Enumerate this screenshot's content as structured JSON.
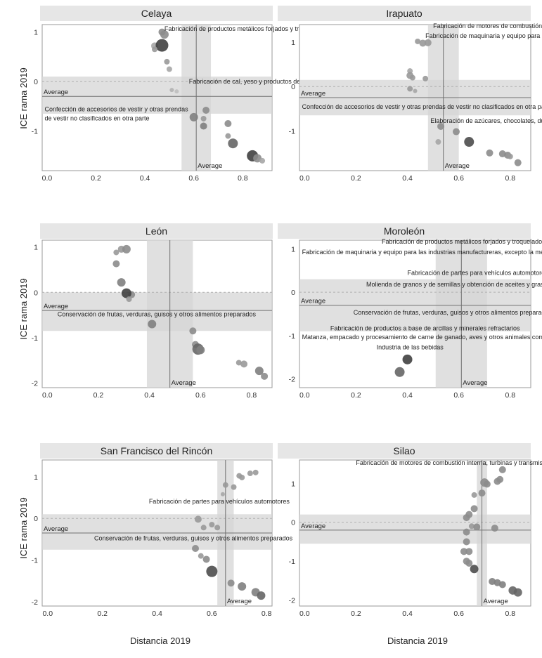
{
  "figure": {
    "ylabel": "ICE rama 2019",
    "xlabel": "Distancia 2019",
    "average_label": "Average"
  },
  "chart_data": [
    {
      "type": "scatter",
      "title": "Celaya",
      "xlim": [
        -0.02,
        0.92
      ],
      "ylim": [
        -1.8,
        1.15
      ],
      "xticks": [
        0.0,
        0.2,
        0.4,
        0.6,
        0.8
      ],
      "yticks": [
        1,
        0,
        -1
      ],
      "xtick_labels": [
        "0.0",
        "0.2",
        "0.4",
        "0.6",
        "0.8"
      ],
      "ytick_labels": [
        "1",
        "0",
        "-1"
      ],
      "avg_x": 0.61,
      "avg_x_band": [
        0.55,
        0.67
      ],
      "avg_y": -0.3,
      "avg_y_band": [
        -0.65,
        0.1
      ],
      "annotations": [
        {
          "lines": [
            "Fabricación de productos metálicos forjados y troquelados"
          ],
          "x": 0.48,
          "y": 1.02
        },
        {
          "lines": [
            "Fabricación de cal, yeso y productos de yeso"
          ],
          "x": 0.58,
          "y": -0.04
        },
        {
          "lines": [
            "Confección de accesorios de vestir y otras prendas",
            "de vestir no clasificados en otra parte"
          ],
          "x": -0.01,
          "y": -0.6
        }
      ],
      "points": [
        {
          "x": 0.47,
          "y": 1.0,
          "s": 5,
          "c": 0.55
        },
        {
          "x": 0.48,
          "y": 0.95,
          "s": 6,
          "c": 0.55
        },
        {
          "x": 0.44,
          "y": 0.72,
          "s": 5,
          "c": 0.65
        },
        {
          "x": 0.47,
          "y": 0.73,
          "s": 9,
          "c": 0.25
        },
        {
          "x": 0.44,
          "y": 0.65,
          "s": 4,
          "c": 0.6
        },
        {
          "x": 0.49,
          "y": 0.4,
          "s": 4,
          "c": 0.6
        },
        {
          "x": 0.5,
          "y": 0.25,
          "s": 4,
          "c": 0.65
        },
        {
          "x": 0.51,
          "y": -0.17,
          "s": 3,
          "c": 0.7
        },
        {
          "x": 0.53,
          "y": -0.2,
          "s": 3,
          "c": 0.75
        },
        {
          "x": 0.6,
          "y": -0.72,
          "s": 6,
          "c": 0.5
        },
        {
          "x": 0.65,
          "y": -0.58,
          "s": 5,
          "c": 0.55
        },
        {
          "x": 0.64,
          "y": -0.75,
          "s": 4,
          "c": 0.6
        },
        {
          "x": 0.64,
          "y": -0.9,
          "s": 5,
          "c": 0.5
        },
        {
          "x": 0.74,
          "y": -0.85,
          "s": 5,
          "c": 0.55
        },
        {
          "x": 0.74,
          "y": -1.1,
          "s": 4,
          "c": 0.6
        },
        {
          "x": 0.76,
          "y": -1.25,
          "s": 7,
          "c": 0.4
        },
        {
          "x": 0.84,
          "y": -1.5,
          "s": 8,
          "c": 0.25
        },
        {
          "x": 0.86,
          "y": -1.55,
          "s": 6,
          "c": 0.55
        },
        {
          "x": 0.88,
          "y": -1.6,
          "s": 4,
          "c": 0.65
        }
      ]
    },
    {
      "type": "scatter",
      "title": "Irapuato",
      "xlim": [
        -0.02,
        0.88
      ],
      "ylim": [
        -1.9,
        1.4
      ],
      "xticks": [
        0.0,
        0.2,
        0.4,
        0.6,
        0.8
      ],
      "yticks": [
        1,
        0,
        -1
      ],
      "xtick_labels": [
        "0.0",
        "0.2",
        "0.4",
        "0.6",
        "0.8"
      ],
      "ytick_labels": [
        "1",
        "0",
        "-1"
      ],
      "avg_x": 0.54,
      "avg_x_band": [
        0.48,
        0.6
      ],
      "avg_y": -0.25,
      "avg_y_band": [
        -0.65,
        0.15
      ],
      "annotations": [
        {
          "lines": [
            "Fabricación de motores de combustión interna, turbinas y transmisiones"
          ],
          "x": 0.5,
          "y": 1.32
        },
        {
          "lines": [
            "Fabricación de maquinaria y equipo para la industria metalmecánica"
          ],
          "x": 0.47,
          "y": 1.1
        },
        {
          "lines": [
            "Confección de accesorios de vestir y otras prendas de vestir no clasificados en otra parte"
          ],
          "x": -0.01,
          "y": -0.5
        },
        {
          "lines": [
            "Elaboración de azúcares, chocolates, dulces y similares"
          ],
          "x": 0.49,
          "y": -0.82
        }
      ],
      "points": [
        {
          "x": 0.44,
          "y": 1.02,
          "s": 4,
          "c": 0.6
        },
        {
          "x": 0.46,
          "y": 0.98,
          "s": 5,
          "c": 0.6
        },
        {
          "x": 0.48,
          "y": 0.99,
          "s": 5,
          "c": 0.6
        },
        {
          "x": 0.41,
          "y": 0.35,
          "s": 4,
          "c": 0.65
        },
        {
          "x": 0.41,
          "y": 0.25,
          "s": 5,
          "c": 0.6
        },
        {
          "x": 0.42,
          "y": 0.2,
          "s": 4,
          "c": 0.6
        },
        {
          "x": 0.47,
          "y": 0.18,
          "s": 4,
          "c": 0.6
        },
        {
          "x": 0.41,
          "y": -0.05,
          "s": 4,
          "c": 0.6
        },
        {
          "x": 0.43,
          "y": -0.1,
          "s": 3,
          "c": 0.65
        },
        {
          "x": 0.53,
          "y": -0.9,
          "s": 5,
          "c": 0.55
        },
        {
          "x": 0.52,
          "y": -1.25,
          "s": 4,
          "c": 0.65
        },
        {
          "x": 0.59,
          "y": -1.02,
          "s": 5,
          "c": 0.55
        },
        {
          "x": 0.64,
          "y": -1.25,
          "s": 7,
          "c": 0.3
        },
        {
          "x": 0.72,
          "y": -1.5,
          "s": 5,
          "c": 0.55
        },
        {
          "x": 0.77,
          "y": -1.52,
          "s": 5,
          "c": 0.55
        },
        {
          "x": 0.79,
          "y": -1.55,
          "s": 5,
          "c": 0.55
        },
        {
          "x": 0.8,
          "y": -1.58,
          "s": 4,
          "c": 0.6
        },
        {
          "x": 0.83,
          "y": -1.72,
          "s": 5,
          "c": 0.55
        }
      ]
    },
    {
      "type": "scatter",
      "title": "León",
      "xlim": [
        -0.02,
        0.88
      ],
      "ylim": [
        -2.1,
        1.15
      ],
      "xticks": [
        0.0,
        0.2,
        0.4,
        0.6,
        0.8
      ],
      "yticks": [
        1,
        0,
        -1,
        -2
      ],
      "xtick_labels": [
        "0.0",
        "0.2",
        "0.4",
        "0.6",
        "0.8"
      ],
      "ytick_labels": [
        "1",
        "0",
        "-1",
        "-2"
      ],
      "avg_x": 0.48,
      "avg_x_band": [
        0.39,
        0.57
      ],
      "avg_y": -0.4,
      "avg_y_band": [
        -0.85,
        0.0
      ],
      "annotations": [
        {
          "lines": [
            "Conservación de frutas, verduras, guisos y otros alimentos preparados"
          ],
          "x": 0.04,
          "y": -0.53
        }
      ],
      "points": [
        {
          "x": 0.27,
          "y": 0.88,
          "s": 4,
          "c": 0.6
        },
        {
          "x": 0.29,
          "y": 0.95,
          "s": 5,
          "c": 0.6
        },
        {
          "x": 0.31,
          "y": 0.95,
          "s": 6,
          "c": 0.55
        },
        {
          "x": 0.27,
          "y": 0.63,
          "s": 5,
          "c": 0.55
        },
        {
          "x": 0.29,
          "y": 0.22,
          "s": 6,
          "c": 0.5
        },
        {
          "x": 0.33,
          "y": -0.05,
          "s": 5,
          "c": 0.55
        },
        {
          "x": 0.31,
          "y": -0.02,
          "s": 7,
          "c": 0.25
        },
        {
          "x": 0.32,
          "y": -0.15,
          "s": 4,
          "c": 0.6
        },
        {
          "x": 0.41,
          "y": -0.7,
          "s": 6,
          "c": 0.5
        },
        {
          "x": 0.57,
          "y": -0.85,
          "s": 5,
          "c": 0.55
        },
        {
          "x": 0.58,
          "y": -1.15,
          "s": 5,
          "c": 0.55
        },
        {
          "x": 0.59,
          "y": -1.25,
          "s": 8,
          "c": 0.4
        },
        {
          "x": 0.6,
          "y": -1.27,
          "s": 6,
          "c": 0.5
        },
        {
          "x": 0.75,
          "y": -1.55,
          "s": 4,
          "c": 0.6
        },
        {
          "x": 0.77,
          "y": -1.58,
          "s": 5,
          "c": 0.6
        },
        {
          "x": 0.83,
          "y": -1.73,
          "s": 6,
          "c": 0.5
        },
        {
          "x": 0.85,
          "y": -1.85,
          "s": 5,
          "c": 0.55
        }
      ]
    },
    {
      "type": "scatter",
      "title": "Moroleón",
      "xlim": [
        -0.02,
        0.88
      ],
      "ylim": [
        -2.2,
        1.2
      ],
      "xticks": [
        0.0,
        0.2,
        0.4,
        0.6,
        0.8
      ],
      "yticks": [
        1,
        0,
        -1,
        -2
      ],
      "xtick_labels": [
        "0.0",
        "0.2",
        "0.4",
        "0.6",
        "0.8"
      ],
      "ytick_labels": [
        "1",
        "0",
        "-1",
        "-2"
      ],
      "avg_x": 0.61,
      "avg_x_band": [
        0.51,
        0.71
      ],
      "avg_y": -0.3,
      "avg_y_band": [
        -0.9,
        0.3
      ],
      "annotations": [
        {
          "lines": [
            "Fabricación de productos metálicos forjados y troquelados"
          ],
          "x": 0.3,
          "y": 1.12
        },
        {
          "lines": [
            "Fabricación de maquinaria y equipo para las industrias manufactureras, excepto la metalmecánica"
          ],
          "x": -0.01,
          "y": 0.88
        },
        {
          "lines": [
            "Fabricación de partes para vehículos automotores"
          ],
          "x": 0.4,
          "y": 0.4
        },
        {
          "lines": [
            "Molienda de granos y de semillas y obtención de aceites y grasas"
          ],
          "x": 0.24,
          "y": 0.13
        },
        {
          "lines": [
            "Conservación de frutas, verduras, guisos y otros alimentos preparados"
          ],
          "x": 0.19,
          "y": -0.52
        },
        {
          "lines": [
            "Fabricación de productos a base de arcillas y minerales refractarios"
          ],
          "x": 0.1,
          "y": -0.88
        },
        {
          "lines": [
            "Matanza, empacado y procesamiento de carne de ganado, aves y otros animales comestibles"
          ],
          "x": -0.01,
          "y": -1.08
        },
        {
          "lines": [
            "Industria de las bebidas"
          ],
          "x": 0.28,
          "y": -1.32
        }
      ],
      "points": [
        {
          "x": 0.4,
          "y": -1.55,
          "s": 7,
          "c": 0.25
        },
        {
          "x": 0.37,
          "y": -1.84,
          "s": 7,
          "c": 0.4
        }
      ]
    },
    {
      "type": "scatter",
      "title": "San Francisco del Rincón",
      "xlim": [
        -0.02,
        0.82
      ],
      "ylim": [
        -2.1,
        1.4
      ],
      "xticks": [
        0.0,
        0.2,
        0.4,
        0.6,
        0.8
      ],
      "yticks": [
        1,
        0,
        -1,
        -2
      ],
      "xtick_labels": [
        "0.0",
        "0.2",
        "0.4",
        "0.6",
        "0.8"
      ],
      "ytick_labels": [
        "1",
        "0",
        "-1",
        "-2"
      ],
      "avg_x": 0.65,
      "avg_x_band": [
        0.62,
        0.68
      ],
      "avg_y": -0.35,
      "avg_y_band": [
        -0.75,
        0.1
      ],
      "annotations": [
        {
          "lines": [
            "Fabricación de partes para vehículos automotores"
          ],
          "x": 0.37,
          "y": 0.36
        },
        {
          "lines": [
            "Conservación de frutas, verduras, guisos y otros alimentos preparados"
          ],
          "x": 0.17,
          "y": -0.53
        }
      ],
      "points": [
        {
          "x": 0.65,
          "y": 0.8,
          "s": 4,
          "c": 0.6
        },
        {
          "x": 0.68,
          "y": 0.75,
          "s": 4,
          "c": 0.6
        },
        {
          "x": 0.7,
          "y": 1.02,
          "s": 4,
          "c": 0.6
        },
        {
          "x": 0.71,
          "y": 0.98,
          "s": 4,
          "c": 0.6
        },
        {
          "x": 0.74,
          "y": 1.08,
          "s": 4,
          "c": 0.6
        },
        {
          "x": 0.76,
          "y": 1.1,
          "s": 4,
          "c": 0.6
        },
        {
          "x": 0.64,
          "y": 0.58,
          "s": 3,
          "c": 0.65
        },
        {
          "x": 0.55,
          "y": -0.02,
          "s": 5,
          "c": 0.6
        },
        {
          "x": 0.57,
          "y": -0.22,
          "s": 4,
          "c": 0.6
        },
        {
          "x": 0.6,
          "y": -0.15,
          "s": 4,
          "c": 0.6
        },
        {
          "x": 0.62,
          "y": -0.22,
          "s": 4,
          "c": 0.6
        },
        {
          "x": 0.54,
          "y": -0.72,
          "s": 5,
          "c": 0.55
        },
        {
          "x": 0.56,
          "y": -0.9,
          "s": 4,
          "c": 0.6
        },
        {
          "x": 0.58,
          "y": -0.98,
          "s": 5,
          "c": 0.55
        },
        {
          "x": 0.6,
          "y": -1.27,
          "s": 8,
          "c": 0.3
        },
        {
          "x": 0.67,
          "y": -1.55,
          "s": 5,
          "c": 0.55
        },
        {
          "x": 0.71,
          "y": -1.63,
          "s": 6,
          "c": 0.5
        },
        {
          "x": 0.76,
          "y": -1.77,
          "s": 6,
          "c": 0.5
        },
        {
          "x": 0.78,
          "y": -1.85,
          "s": 6,
          "c": 0.4
        }
      ]
    },
    {
      "type": "scatter",
      "title": "Silao",
      "xlim": [
        -0.02,
        0.88
      ],
      "ylim": [
        -2.15,
        1.6
      ],
      "xticks": [
        0.0,
        0.2,
        0.4,
        0.6,
        0.8
      ],
      "yticks": [
        1,
        0,
        -1,
        -2
      ],
      "xtick_labels": [
        "0.0",
        "0.2",
        "0.4",
        "0.6",
        "0.8"
      ],
      "ytick_labels": [
        "1",
        "0",
        "-1",
        "-2"
      ],
      "avg_x": 0.69,
      "avg_x_band": [
        0.67,
        0.71
      ],
      "avg_y": -0.2,
      "avg_y_band": [
        -0.55,
        0.2
      ],
      "annotations": [
        {
          "lines": [
            "Fabricación de motores de combustión interna, turbinas y transmisiones"
          ],
          "x": 0.2,
          "y": 1.47
        }
      ],
      "points": [
        {
          "x": 0.77,
          "y": 1.35,
          "s": 5,
          "c": 0.55
        },
        {
          "x": 0.7,
          "y": 1.02,
          "s": 6,
          "c": 0.55
        },
        {
          "x": 0.71,
          "y": 0.98,
          "s": 5,
          "c": 0.55
        },
        {
          "x": 0.75,
          "y": 1.05,
          "s": 5,
          "c": 0.55
        },
        {
          "x": 0.76,
          "y": 1.1,
          "s": 5,
          "c": 0.55
        },
        {
          "x": 0.69,
          "y": 0.75,
          "s": 5,
          "c": 0.55
        },
        {
          "x": 0.66,
          "y": 0.7,
          "s": 4,
          "c": 0.6
        },
        {
          "x": 0.66,
          "y": 0.35,
          "s": 5,
          "c": 0.55
        },
        {
          "x": 0.64,
          "y": 0.2,
          "s": 5,
          "c": 0.55
        },
        {
          "x": 0.63,
          "y": 0.12,
          "s": 5,
          "c": 0.55
        },
        {
          "x": 0.65,
          "y": -0.1,
          "s": 4,
          "c": 0.6
        },
        {
          "x": 0.67,
          "y": -0.12,
          "s": 5,
          "c": 0.55
        },
        {
          "x": 0.74,
          "y": -0.15,
          "s": 5,
          "c": 0.55
        },
        {
          "x": 0.63,
          "y": -0.25,
          "s": 5,
          "c": 0.55
        },
        {
          "x": 0.63,
          "y": -0.5,
          "s": 5,
          "c": 0.55
        },
        {
          "x": 0.62,
          "y": -0.75,
          "s": 5,
          "c": 0.55
        },
        {
          "x": 0.64,
          "y": -0.75,
          "s": 5,
          "c": 0.55
        },
        {
          "x": 0.63,
          "y": -1.0,
          "s": 5,
          "c": 0.55
        },
        {
          "x": 0.64,
          "y": -1.05,
          "s": 5,
          "c": 0.55
        },
        {
          "x": 0.66,
          "y": -1.2,
          "s": 6,
          "c": 0.3
        },
        {
          "x": 0.73,
          "y": -1.52,
          "s": 5,
          "c": 0.5
        },
        {
          "x": 0.75,
          "y": -1.55,
          "s": 5,
          "c": 0.5
        },
        {
          "x": 0.77,
          "y": -1.6,
          "s": 5,
          "c": 0.5
        },
        {
          "x": 0.81,
          "y": -1.75,
          "s": 6,
          "c": 0.4
        },
        {
          "x": 0.83,
          "y": -1.8,
          "s": 6,
          "c": 0.4
        }
      ]
    }
  ]
}
